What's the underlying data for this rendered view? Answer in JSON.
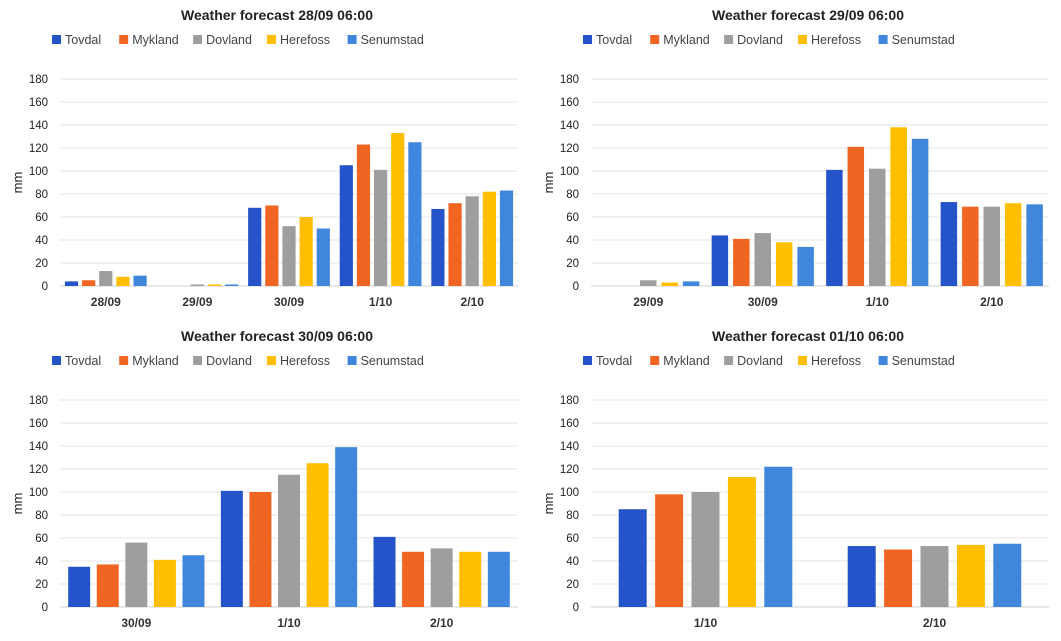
{
  "colors": {
    "Tovdal": "#2553c9",
    "Mykland": "#f06522",
    "Dovland": "#9e9e9e",
    "Herefoss": "#ffbf00",
    "Senumstad": "#3f86dc"
  },
  "chart_data": [
    {
      "type": "bar",
      "title": "Weather forecast 28/09 06:00",
      "ylabel": "mm",
      "ylim": [
        0,
        180
      ],
      "yticks": [
        0,
        20,
        40,
        60,
        80,
        100,
        120,
        140,
        160,
        180
      ],
      "grid": true,
      "legend_position": "top",
      "categories": [
        "28/09",
        "29/09",
        "30/09",
        "1/10",
        "2/10"
      ],
      "series": [
        {
          "name": "Tovdal",
          "values": [
            4,
            0,
            68,
            105,
            67
          ]
        },
        {
          "name": "Mykland",
          "values": [
            5,
            0,
            70,
            123,
            72
          ]
        },
        {
          "name": "Dovland",
          "values": [
            13,
            1,
            52,
            101,
            78
          ]
        },
        {
          "name": "Herefoss",
          "values": [
            8,
            1,
            60,
            133,
            82
          ]
        },
        {
          "name": "Senumstad",
          "values": [
            9,
            1,
            50,
            125,
            83
          ]
        }
      ]
    },
    {
      "type": "bar",
      "title": "Weather forecast 29/09 06:00",
      "ylabel": "mm",
      "ylim": [
        0,
        180
      ],
      "yticks": [
        0,
        20,
        40,
        60,
        80,
        100,
        120,
        140,
        160,
        180
      ],
      "grid": true,
      "legend_position": "top",
      "categories": [
        "29/09",
        "30/09",
        "1/10",
        "2/10"
      ],
      "series": [
        {
          "name": "Tovdal",
          "values": [
            0,
            44,
            101,
            73
          ]
        },
        {
          "name": "Mykland",
          "values": [
            0,
            41,
            121,
            69
          ]
        },
        {
          "name": "Dovland",
          "values": [
            5,
            46,
            102,
            69
          ]
        },
        {
          "name": "Herefoss",
          "values": [
            3,
            38,
            138,
            72
          ]
        },
        {
          "name": "Senumstad",
          "values": [
            4,
            34,
            128,
            71
          ]
        }
      ]
    },
    {
      "type": "bar",
      "title": "Weather forecast 30/09 06:00",
      "ylabel": "mm",
      "ylim": [
        0,
        180
      ],
      "yticks": [
        0,
        20,
        40,
        60,
        80,
        100,
        120,
        140,
        160,
        180
      ],
      "grid": true,
      "legend_position": "top",
      "categories": [
        "30/09",
        "1/10",
        "2/10"
      ],
      "series": [
        {
          "name": "Tovdal",
          "values": [
            35,
            101,
            61
          ]
        },
        {
          "name": "Mykland",
          "values": [
            37,
            100,
            48
          ]
        },
        {
          "name": "Dovland",
          "values": [
            56,
            115,
            51
          ]
        },
        {
          "name": "Herefoss",
          "values": [
            41,
            125,
            48
          ]
        },
        {
          "name": "Senumstad",
          "values": [
            45,
            139,
            48
          ]
        }
      ]
    },
    {
      "type": "bar",
      "title": "Weather forecast 01/10 06:00",
      "ylabel": "mm",
      "ylim": [
        0,
        180
      ],
      "yticks": [
        0,
        20,
        40,
        60,
        80,
        100,
        120,
        140,
        160,
        180
      ],
      "grid": true,
      "legend_position": "top",
      "categories": [
        "1/10",
        "2/10"
      ],
      "series": [
        {
          "name": "Tovdal",
          "values": [
            85,
            53
          ]
        },
        {
          "name": "Mykland",
          "values": [
            98,
            50
          ]
        },
        {
          "name": "Dovland",
          "values": [
            100,
            53
          ]
        },
        {
          "name": "Herefoss",
          "values": [
            113,
            54
          ]
        },
        {
          "name": "Senumstad",
          "values": [
            122,
            55
          ]
        }
      ]
    }
  ]
}
